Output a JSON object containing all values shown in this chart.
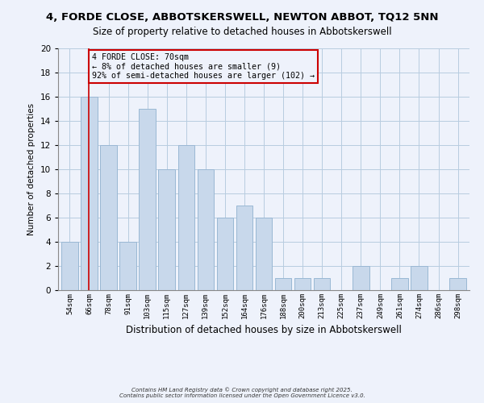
{
  "title": "4, FORDE CLOSE, ABBOTSKERSWELL, NEWTON ABBOT, TQ12 5NN",
  "subtitle": "Size of property relative to detached houses in Abbotskerswell",
  "xlabel": "Distribution of detached houses by size in Abbotskerswell",
  "ylabel": "Number of detached properties",
  "bar_labels": [
    "54sqm",
    "66sqm",
    "78sqm",
    "91sqm",
    "103sqm",
    "115sqm",
    "127sqm",
    "139sqm",
    "152sqm",
    "164sqm",
    "176sqm",
    "188sqm",
    "200sqm",
    "213sqm",
    "225sqm",
    "237sqm",
    "249sqm",
    "261sqm",
    "274sqm",
    "286sqm",
    "298sqm"
  ],
  "bar_values": [
    4,
    16,
    12,
    4,
    15,
    10,
    12,
    10,
    6,
    7,
    6,
    1,
    1,
    1,
    0,
    2,
    0,
    1,
    2,
    0,
    1
  ],
  "bar_color": "#c8d8eb",
  "bar_edgecolor": "#9ab8d4",
  "vline_x": 1,
  "vline_color": "#cc0000",
  "ylim": [
    0,
    20
  ],
  "yticks": [
    0,
    2,
    4,
    6,
    8,
    10,
    12,
    14,
    16,
    18,
    20
  ],
  "annotation_title": "4 FORDE CLOSE: 70sqm",
  "annotation_line1": "← 8% of detached houses are smaller (9)",
  "annotation_line2": "92% of semi-detached houses are larger (102) →",
  "annotation_box_edgecolor": "#cc0000",
  "footer1": "Contains HM Land Registry data © Crown copyright and database right 2025.",
  "footer2": "Contains public sector information licensed under the Open Government Licence v3.0.",
  "background_color": "#eef2fb",
  "grid_color": "#b8cce0",
  "title_fontsize": 9.5,
  "subtitle_fontsize": 8.5,
  "ylabel_fontsize": 7.5,
  "xlabel_fontsize": 8.5
}
